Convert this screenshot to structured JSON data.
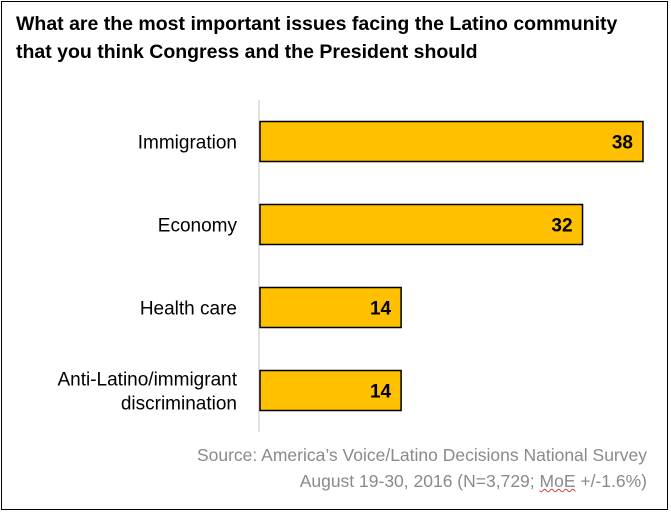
{
  "title": "What are the most important issues facing the Latino community that you think Congress and the President should",
  "source": {
    "line1": "Source: America’s Voice/Latino Decisions National Survey",
    "line2_prefix": "August 19-30, 2016 (N=3,729; ",
    "line2_moe": "MoE",
    "line2_suffix": " +/-1.6%)"
  },
  "colors": {
    "bar_fill": "#FFC000",
    "bar_stroke": "#000000",
    "axis": "#d9d9d9"
  },
  "chart_data": {
    "type": "bar",
    "orientation": "horizontal",
    "categories": [
      "Immigration",
      "Economy",
      "Health care",
      "Anti-Latino/immigrant discrimination"
    ],
    "category_lines": [
      [
        "Immigration"
      ],
      [
        "Economy"
      ],
      [
        "Health care"
      ],
      [
        "Anti-Latino/immigrant",
        "discrimination"
      ]
    ],
    "values": [
      38,
      32,
      14,
      14
    ],
    "title": "What are the most important issues facing the Latino community that you think Congress and the President should",
    "xlim": [
      0,
      38
    ],
    "grid": false,
    "legend": "none"
  }
}
